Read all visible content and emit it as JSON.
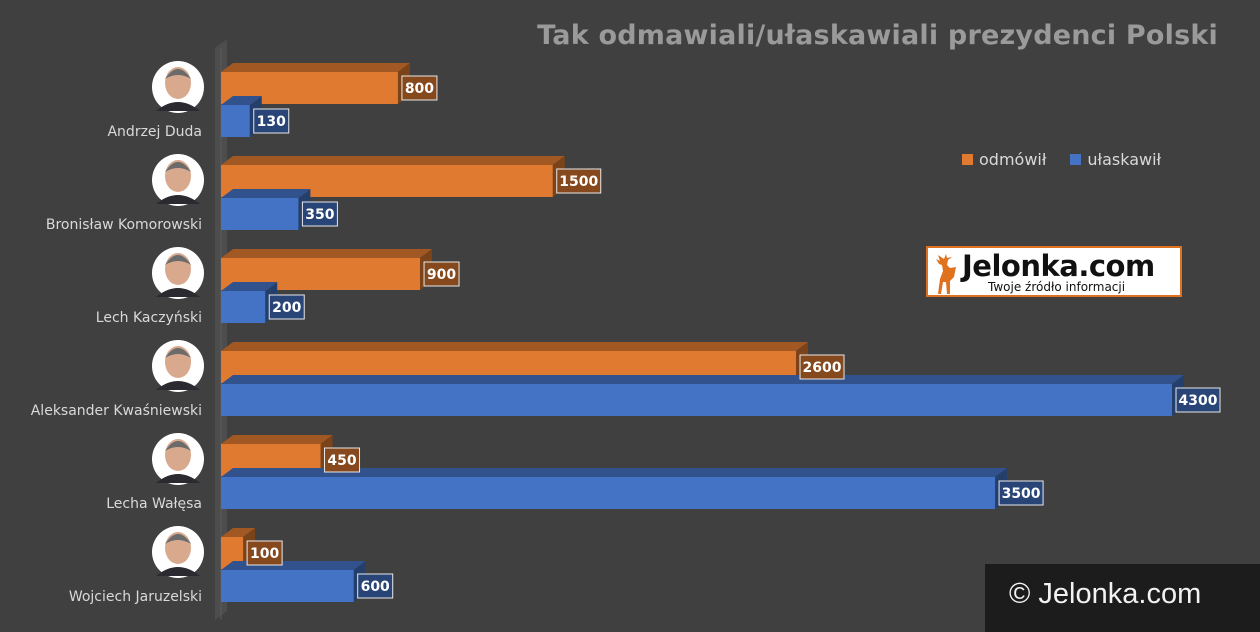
{
  "chart_data": {
    "type": "bar",
    "orientation": "horizontal",
    "title": "Tak odmawiali/ułaskawiali prezydenci Polski",
    "categories": [
      "Andrzej Duda",
      "Bronisław Komorowski",
      "Lech Kaczyński",
      "Aleksander Kwaśniewski",
      "Lecha Wałęsa",
      "Wojciech Jaruzelski"
    ],
    "series": [
      {
        "name": "odmówił",
        "color": "#e07a30",
        "values": [
          800,
          1500,
          900,
          2600,
          450,
          100
        ]
      },
      {
        "name": "ułaskawił",
        "color": "#4472c4",
        "values": [
          130,
          350,
          200,
          4300,
          3500,
          600
        ]
      }
    ],
    "xlim": [
      0,
      4300
    ],
    "grid": false,
    "legend_position": "top-right",
    "data_labels": true
  },
  "legend": {
    "items": [
      {
        "label": "odmówił",
        "color": "#e07a30"
      },
      {
        "label": "ułaskawił",
        "color": "#4472c4"
      }
    ]
  },
  "logo": {
    "name": "Jelonka.com",
    "tagline": "Twoje źródło informacji",
    "icon": "deer-icon",
    "accent": "#e0711f"
  },
  "watermark": {
    "text": "© Jelonka.com"
  },
  "colors": {
    "background": "#404040"
  }
}
